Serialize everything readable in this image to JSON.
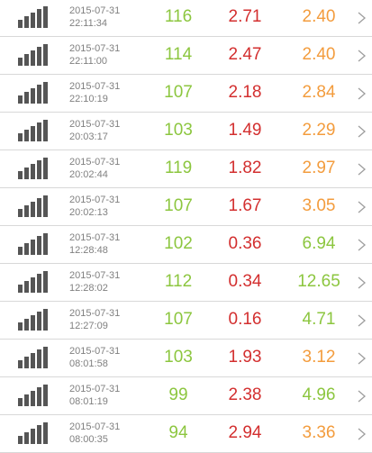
{
  "colors": {
    "good": "#8cc63f",
    "bad": "#d32f2f",
    "warn": "#f39c3d",
    "signal": "#555555",
    "timestamp": "#808080",
    "chevron": "#9e9e9e",
    "divider": "#d8d8d8"
  },
  "icons": {
    "signal": "signal-strength-icon",
    "chevron": "chevron-right-icon"
  },
  "rows": [
    {
      "date": "2015-07-31",
      "time": "22:11:34",
      "v1": "116",
      "v2": "2.71",
      "v3": "2.40",
      "c1": "good",
      "c2": "bad",
      "c3": "warn"
    },
    {
      "date": "2015-07-31",
      "time": "22:11:00",
      "v1": "114",
      "v2": "2.47",
      "v3": "2.40",
      "c1": "good",
      "c2": "bad",
      "c3": "warn"
    },
    {
      "date": "2015-07-31",
      "time": "22:10:19",
      "v1": "107",
      "v2": "2.18",
      "v3": "2.84",
      "c1": "good",
      "c2": "bad",
      "c3": "warn"
    },
    {
      "date": "2015-07-31",
      "time": "20:03:17",
      "v1": "103",
      "v2": "1.49",
      "v3": "2.29",
      "c1": "good",
      "c2": "bad",
      "c3": "warn"
    },
    {
      "date": "2015-07-31",
      "time": "20:02:44",
      "v1": "119",
      "v2": "1.82",
      "v3": "2.97",
      "c1": "good",
      "c2": "bad",
      "c3": "warn"
    },
    {
      "date": "2015-07-31",
      "time": "20:02:13",
      "v1": "107",
      "v2": "1.67",
      "v3": "3.05",
      "c1": "good",
      "c2": "bad",
      "c3": "warn"
    },
    {
      "date": "2015-07-31",
      "time": "12:28:48",
      "v1": "102",
      "v2": "0.36",
      "v3": "6.94",
      "c1": "good",
      "c2": "bad",
      "c3": "good"
    },
    {
      "date": "2015-07-31",
      "time": "12:28:02",
      "v1": "112",
      "v2": "0.34",
      "v3": "12.65",
      "c1": "good",
      "c2": "bad",
      "c3": "good"
    },
    {
      "date": "2015-07-31",
      "time": "12:27:09",
      "v1": "107",
      "v2": "0.16",
      "v3": "4.71",
      "c1": "good",
      "c2": "bad",
      "c3": "good"
    },
    {
      "date": "2015-07-31",
      "time": "08:01:58",
      "v1": "103",
      "v2": "1.93",
      "v3": "3.12",
      "c1": "good",
      "c2": "bad",
      "c3": "warn"
    },
    {
      "date": "2015-07-31",
      "time": "08:01:19",
      "v1": "99",
      "v2": "2.38",
      "v3": "4.96",
      "c1": "good",
      "c2": "bad",
      "c3": "good"
    },
    {
      "date": "2015-07-31",
      "time": "08:00:35",
      "v1": "94",
      "v2": "2.94",
      "v3": "3.36",
      "c1": "good",
      "c2": "bad",
      "c3": "warn"
    }
  ]
}
